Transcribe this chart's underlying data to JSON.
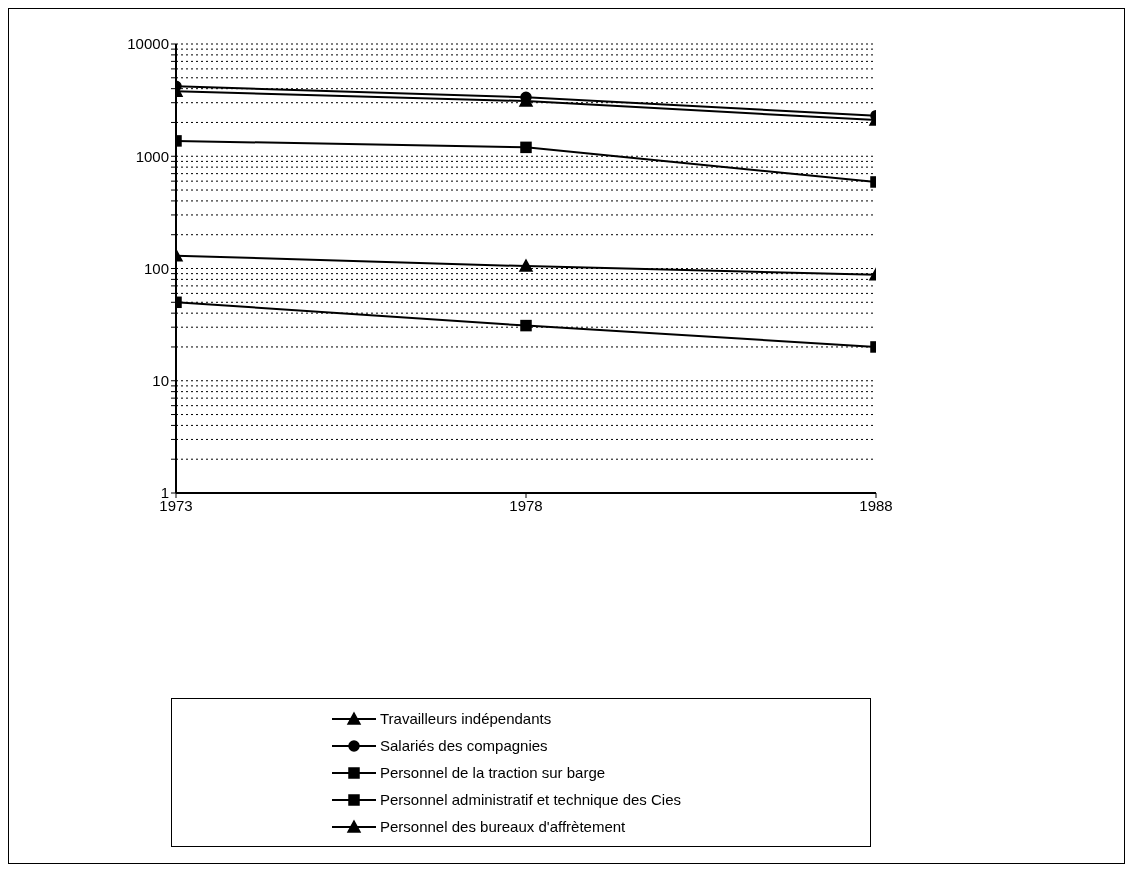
{
  "chart_data": {
    "type": "line",
    "categories": [
      "1973",
      "1978",
      "1988"
    ],
    "series": [
      {
        "name": "Travailleurs indépendants",
        "color": "#000000",
        "marker": "triangle",
        "values": [
          3800,
          3100,
          2100
        ]
      },
      {
        "name": "Salariés des compagnies",
        "color": "#000000",
        "marker": "circle",
        "values": [
          4200,
          3350,
          2300
        ]
      },
      {
        "name": "Personnel de la traction sur barge",
        "color": "#000000",
        "marker": "square",
        "values": [
          50,
          31,
          20
        ]
      },
      {
        "name": "Personnel administratif et technique des Cies",
        "color": "#000000",
        "marker": "square",
        "values": [
          1370,
          1200,
          590
        ]
      },
      {
        "name": "Personnel des bureaux d'affrètement",
        "color": "#000000",
        "marker": "triangle",
        "values": [
          130,
          105,
          88
        ]
      }
    ],
    "log": "y",
    "ylim": [
      1,
      10000
    ],
    "yticks": [
      1,
      {
        "value": 2,
        "label": null
      },
      {
        "value": 3,
        "label": null
      },
      {
        "value": 4,
        "label": null
      },
      {
        "value": 5,
        "label": null
      },
      {
        "value": 6,
        "label": null
      },
      {
        "value": 7,
        "label": null
      },
      {
        "value": 8,
        "label": null
      },
      {
        "value": 9,
        "label": null
      },
      10,
      {
        "value": 20,
        "label": null
      },
      {
        "value": 30,
        "label": null
      },
      {
        "value": 40,
        "label": null
      },
      {
        "value": 50,
        "label": null
      },
      {
        "value": 60,
        "label": null
      },
      {
        "value": 70,
        "label": null
      },
      {
        "value": 80,
        "label": null
      },
      {
        "value": 90,
        "label": null
      },
      100,
      {
        "value": 200,
        "label": null
      },
      {
        "value": 300,
        "label": null
      },
      {
        "value": 400,
        "label": null
      },
      {
        "value": 500,
        "label": null
      },
      {
        "value": 600,
        "label": null
      },
      {
        "value": 700,
        "label": null
      },
      {
        "value": 800,
        "label": null
      },
      {
        "value": 900,
        "label": null
      },
      1000,
      {
        "value": 2000,
        "label": null
      },
      {
        "value": 3000,
        "label": null
      },
      {
        "value": 4000,
        "label": null
      },
      {
        "value": 5000,
        "label": null
      },
      {
        "value": 6000,
        "label": null
      },
      {
        "value": 7000,
        "label": null
      },
      {
        "value": 8000,
        "label": null
      },
      {
        "value": 9000,
        "label": null
      },
      10000
    ],
    "grid": "y",
    "legend": "bottom"
  }
}
